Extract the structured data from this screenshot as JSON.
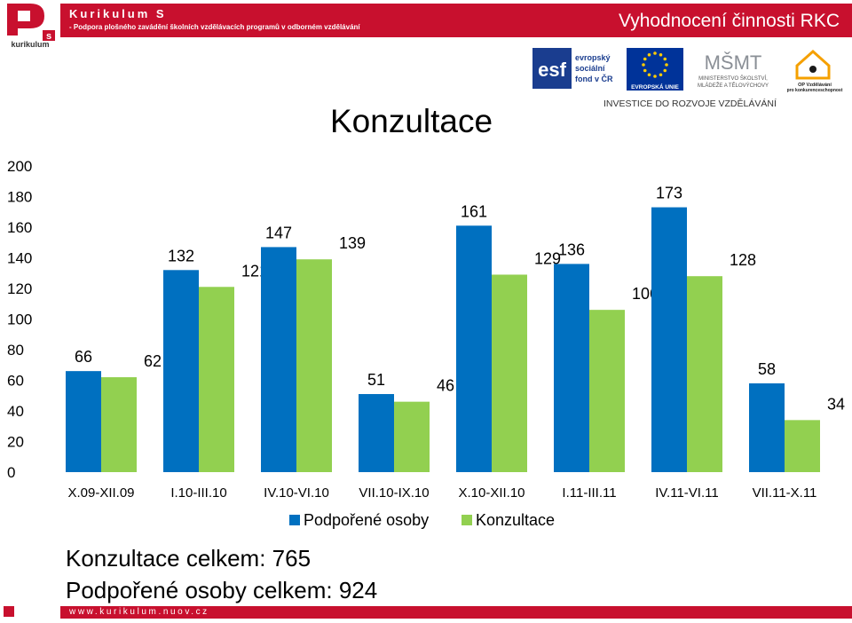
{
  "header": {
    "brand_title": "Kurikulum S",
    "brand_subtitle": "- Podpora plošného zavádění školních vzdělávacích programů v odborném vzdělávání",
    "section_title": "Vyhodnocení činnosti RKC",
    "logo_text": "kurikulum",
    "logo_letter": "s",
    "colors": {
      "brand_red": "#c8102e"
    }
  },
  "eu_logos": {
    "esf_short": "esf",
    "esf_text": [
      "evropský",
      "sociální",
      "fond v ČR"
    ],
    "eu_label": "EVROPSKÁ UNIE",
    "msmt_top": "MŠMT",
    "msmt_text": [
      "MINISTERSTVO ŠKOLSTVÍ,",
      "MLÁDEŽE A TĚLOVÝCHOVY"
    ],
    "op_text": [
      "OP Vzdělávání",
      "pro konkurenceschopnost"
    ],
    "tagline": "INVESTICE DO ROZVOJE VZDĚLÁVÁNÍ"
  },
  "page": {
    "heading": "Konzultace"
  },
  "chart_data": {
    "type": "bar",
    "title": "Konzultace",
    "categories": [
      "X.09-XII.09",
      "I.10-III.10",
      "IV.10-VI.10",
      "VII.10-IX.10",
      "X.10-XII.10",
      "I.11-III.11",
      "IV.11-VI.11",
      "VII.11-X.11"
    ],
    "series": [
      {
        "name": "Podpořené osoby",
        "values": [
          66,
          132,
          147,
          51,
          161,
          136,
          173,
          58
        ],
        "color": "#0070c0"
      },
      {
        "name": "Konzultace",
        "values": [
          62,
          121,
          139,
          46,
          129,
          106,
          128,
          34
        ],
        "color": "#92d050"
      }
    ],
    "ylim": [
      0,
      200
    ],
    "yticks": [
      0,
      20,
      40,
      60,
      80,
      100,
      120,
      140,
      160,
      180,
      200
    ],
    "grid": false,
    "legend_position": "bottom"
  },
  "summary": {
    "konzultace": "Konzultace celkem: 765",
    "osoby": "Podpořené osoby celkem: 924"
  },
  "footer": {
    "url": "www.kurikulum.nuov.cz"
  }
}
